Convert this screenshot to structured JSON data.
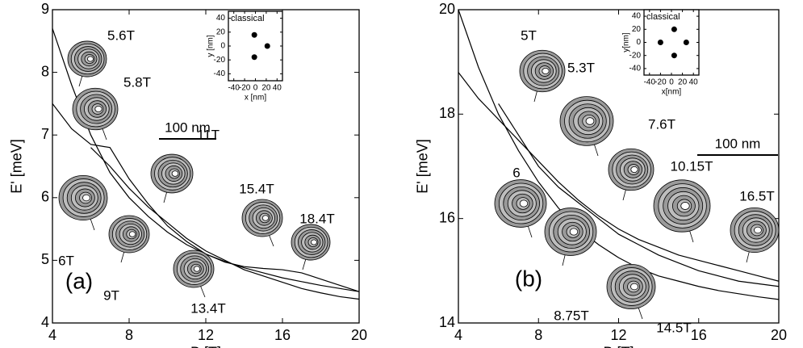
{
  "chart_data": [
    {
      "type": "line",
      "panel": "(a)",
      "xlabel": "B [T]",
      "ylabel": "E' [meV]",
      "xlim": [
        4,
        20
      ],
      "ylim": [
        4,
        9
      ],
      "xticks": [
        4,
        8,
        12,
        16,
        20
      ],
      "yticks": [
        4,
        5,
        6,
        7,
        8,
        9
      ],
      "x": [
        4,
        5,
        6,
        7,
        8,
        9,
        10,
        11,
        12,
        13,
        14,
        15,
        16,
        17,
        18,
        19,
        20
      ],
      "series": [
        {
          "color": "#000000",
          "values": [
            8.7,
            7.8,
            7.0,
            6.4,
            6.0,
            5.7,
            5.45,
            5.25,
            5.1,
            4.98,
            4.88,
            4.8,
            4.72,
            4.66,
            4.6,
            4.55,
            4.5
          ]
        },
        {
          "color": "#000000",
          "values": [
            7.5,
            7.1,
            6.85,
            6.8,
            6.3,
            5.9,
            5.55,
            5.3,
            5.1,
            4.97,
            4.9,
            4.87,
            4.85,
            4.8,
            4.7,
            4.6,
            4.5
          ]
        },
        {
          "color": "#000000",
          "values": [
            null,
            null,
            6.8,
            6.5,
            6.15,
            5.85,
            5.6,
            5.35,
            5.15,
            5.0,
            4.85,
            4.75,
            4.65,
            4.55,
            4.48,
            4.42,
            4.38
          ]
        }
      ],
      "annotations": [
        "5.6T",
        "5.8T",
        "11T",
        "15.4T",
        "18.4T",
        "6T",
        "9T",
        "13.4T"
      ],
      "scale_bar": "100 nm",
      "inset": {
        "type": "scatter",
        "title": "classical",
        "xlabel": "x [nm]",
        "ylabel": "y [nm]",
        "xlim": [
          -50,
          50
        ],
        "ylim": [
          -50,
          50
        ],
        "xticks": [
          -40,
          -20,
          0,
          20,
          40
        ],
        "yticks": [
          -40,
          -20,
          0,
          20,
          40
        ],
        "x": [
          -2,
          -2,
          22
        ],
        "y": [
          16,
          -16,
          0
        ]
      }
    },
    {
      "type": "line",
      "panel": "(b)",
      "xlabel": "B [T]",
      "ylabel": "E' [meV]",
      "xlim": [
        4,
        20
      ],
      "ylim": [
        14,
        20
      ],
      "xticks": [
        4,
        8,
        12,
        16,
        20
      ],
      "yticks": [
        14,
        16,
        18,
        20
      ],
      "x": [
        4,
        5,
        6,
        7,
        8,
        9,
        10,
        11,
        12,
        13,
        14,
        15,
        16,
        17,
        18,
        19,
        20
      ],
      "series": [
        {
          "color": "#000000",
          "values": [
            20.0,
            18.9,
            18.0,
            17.3,
            16.7,
            16.2,
            15.8,
            15.5,
            15.25,
            15.05,
            14.9,
            14.8,
            14.7,
            14.62,
            14.56,
            14.5,
            14.45
          ]
        },
        {
          "color": "#000000",
          "values": [
            18.8,
            18.3,
            17.9,
            17.5,
            17.1,
            16.7,
            16.35,
            16.05,
            15.8,
            15.6,
            15.45,
            15.3,
            15.2,
            15.1,
            15.0,
            14.9,
            14.8
          ]
        },
        {
          "color": "#000000",
          "values": [
            null,
            null,
            18.2,
            17.6,
            17.0,
            16.6,
            16.3,
            16.0,
            15.7,
            15.5,
            15.3,
            15.15,
            15.0,
            14.9,
            14.8,
            14.75,
            14.7
          ]
        }
      ],
      "annotations": [
        "5T",
        "5.3T",
        "7.6T",
        "10.15T",
        "16.5T",
        "6",
        "8.75T",
        "14.5T"
      ],
      "scale_bar": "100 nm",
      "inset": {
        "type": "scatter",
        "title": "classical",
        "xlabel": "x[nm]",
        "ylabel": "y[nm]",
        "xlim": [
          -50,
          50
        ],
        "ylim": [
          -50,
          50
        ],
        "xticks": [
          -40,
          -20,
          0,
          20,
          40
        ],
        "yticks": [
          -40,
          -20,
          0,
          20,
          40
        ],
        "x": [
          -20,
          5,
          5,
          27
        ],
        "y": [
          0,
          20,
          -20,
          0
        ]
      }
    }
  ]
}
